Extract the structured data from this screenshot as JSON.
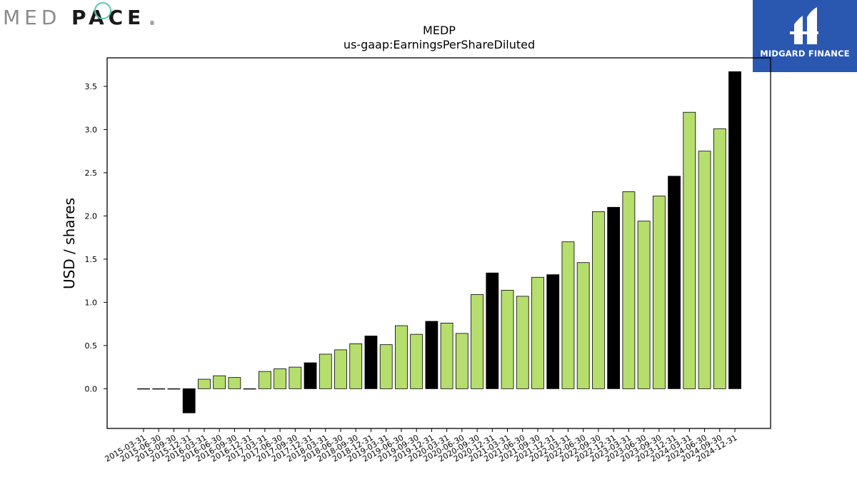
{
  "logos": {
    "left": {
      "text_light": "MED",
      "text_dark": "PACE",
      "trademark": "®"
    },
    "right": {
      "text": "MIDGARD FINANCE",
      "color": "#2a57b0"
    }
  },
  "chart_data": {
    "type": "bar",
    "title": "MEDP",
    "subtitle": "us-gaap:EarningsPerShareDiluted",
    "xlabel": "",
    "ylabel": "USD / shares",
    "ylim": [
      -0.46,
      3.83
    ],
    "yticks": [
      "0.0",
      "0.5",
      "1.0",
      "1.5",
      "2.0",
      "2.5",
      "3.0",
      "3.5"
    ],
    "grid": false,
    "colors": {
      "quarter": "#b5de6c",
      "year_end": "#000000",
      "edge": "#000000"
    },
    "categories": [
      "2015-03-31",
      "2015-06-30",
      "2015-09-30",
      "2015-12-31",
      "2016-03-31",
      "2016-06-30",
      "2016-09-30",
      "2016-12-31",
      "2017-03-31",
      "2017-06-30",
      "2017-09-30",
      "2017-12-31",
      "2018-03-31",
      "2018-06-30",
      "2018-09-30",
      "2018-12-31",
      "2019-03-31",
      "2019-06-30",
      "2019-09-30",
      "2019-12-31",
      "2020-03-31",
      "2020-06-30",
      "2020-09-30",
      "2020-12-31",
      "2021-03-31",
      "2021-06-30",
      "2021-09-30",
      "2021-12-31",
      "2022-03-31",
      "2022-06-30",
      "2022-09-30",
      "2022-12-31",
      "2023-03-31",
      "2023-06-30",
      "2023-09-30",
      "2023-12-31",
      "2024-03-31",
      "2024-06-30",
      "2024-09-30",
      "2024-12-31"
    ],
    "values": [
      0.0,
      0.0,
      0.0,
      -0.28,
      0.11,
      0.15,
      0.13,
      0.0,
      0.2,
      0.23,
      0.25,
      0.3,
      0.4,
      0.45,
      0.52,
      0.61,
      0.51,
      0.73,
      0.63,
      0.78,
      0.76,
      0.64,
      1.09,
      1.34,
      1.14,
      1.07,
      1.29,
      1.32,
      1.7,
      1.46,
      2.05,
      2.1,
      2.28,
      1.94,
      2.23,
      2.46,
      3.2,
      2.75,
      3.01,
      3.67
    ],
    "year_end": [
      false,
      false,
      false,
      true,
      false,
      false,
      false,
      true,
      false,
      false,
      false,
      true,
      false,
      false,
      false,
      true,
      false,
      false,
      false,
      true,
      false,
      false,
      false,
      true,
      false,
      false,
      false,
      true,
      false,
      false,
      false,
      true,
      false,
      false,
      false,
      true,
      false,
      false,
      false,
      true
    ]
  }
}
